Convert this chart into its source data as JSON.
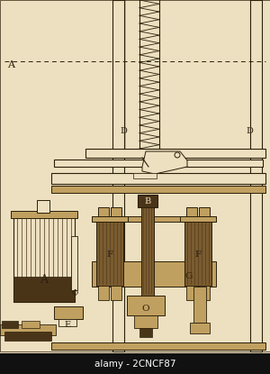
{
  "bg_color": "#ede0c0",
  "line_color": "#2a1f0a",
  "dark_fill": "#4a3418",
  "medium_fill": "#7a5c30",
  "light_fill": "#c0a060",
  "bottom_text": "alamy - 2CNCF87",
  "label_A": "A",
  "label_D_left": "D",
  "label_D_right": "D",
  "label_B": "B",
  "label_F_left": "F",
  "label_F_right": "F",
  "label_G": "G",
  "label_E": "E",
  "label_O": "O",
  "label_phi": "Φ",
  "fig_width": 3.0,
  "fig_height": 4.15,
  "dpi": 100
}
